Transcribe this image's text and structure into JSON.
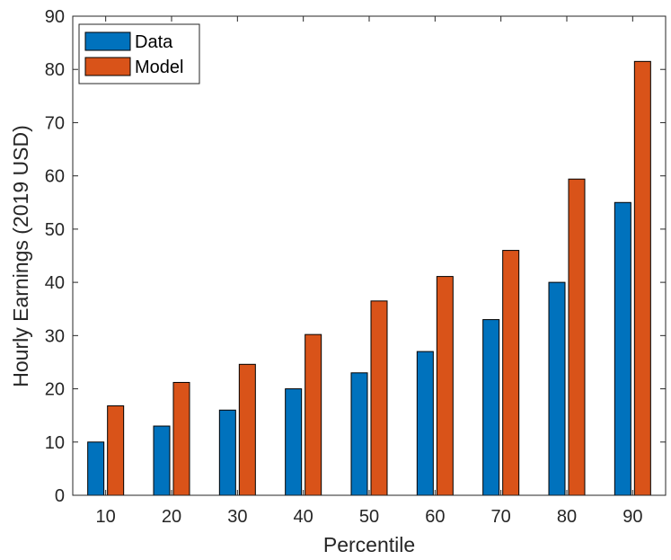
{
  "chart_data": {
    "type": "bar",
    "title": "",
    "xlabel": "Percentile",
    "ylabel": "Hourly Earnings (2019 USD)",
    "categories": [
      "10",
      "20",
      "30",
      "40",
      "50",
      "60",
      "70",
      "80",
      "90"
    ],
    "series": [
      {
        "name": "Data",
        "color": "#0072BD",
        "values": [
          10,
          13,
          16,
          20,
          23,
          27,
          33,
          40,
          55
        ]
      },
      {
        "name": "Model",
        "color": "#D95319",
        "values": [
          16.8,
          21.2,
          24.6,
          30.2,
          36.5,
          41.1,
          46.0,
          59.4,
          81.5
        ]
      }
    ],
    "ylim": [
      0,
      90
    ],
    "yticks": [
      "0",
      "10",
      "20",
      "30",
      "40",
      "50",
      "60",
      "70",
      "80",
      "90"
    ],
    "grid": false,
    "legend_position": "top-left"
  }
}
